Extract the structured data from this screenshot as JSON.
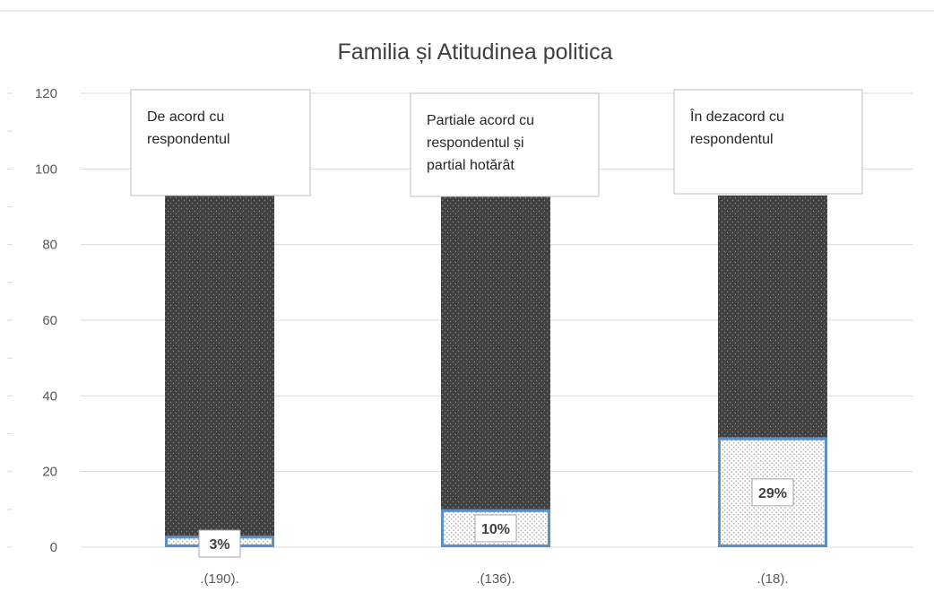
{
  "chart_data": {
    "type": "bar",
    "stacked": true,
    "title": "Familia și Atitudinea politica",
    "categories": [
      ".(190).",
      ".(136).",
      ".(18)."
    ],
    "series": [
      {
        "values": [
          3,
          10,
          29
        ],
        "color": "#dde6ef"
      },
      {
        "values": [
          90,
          83,
          64
        ],
        "color": "#404040"
      }
    ],
    "data_labels": [
      "3%",
      "10%",
      "29%"
    ],
    "annotations": [
      [
        "De acord cu",
        "respondentul"
      ],
      [
        "Partiale acord cu",
        "respondentul și",
        "partial hotărât"
      ],
      [
        "În dezacord cu",
        "respondentul"
      ]
    ],
    "ylim": [
      0,
      120
    ],
    "yticks": [
      "0",
      "20",
      "40",
      "60",
      "80",
      "100",
      "120"
    ],
    "grid": true,
    "legend": "none"
  }
}
